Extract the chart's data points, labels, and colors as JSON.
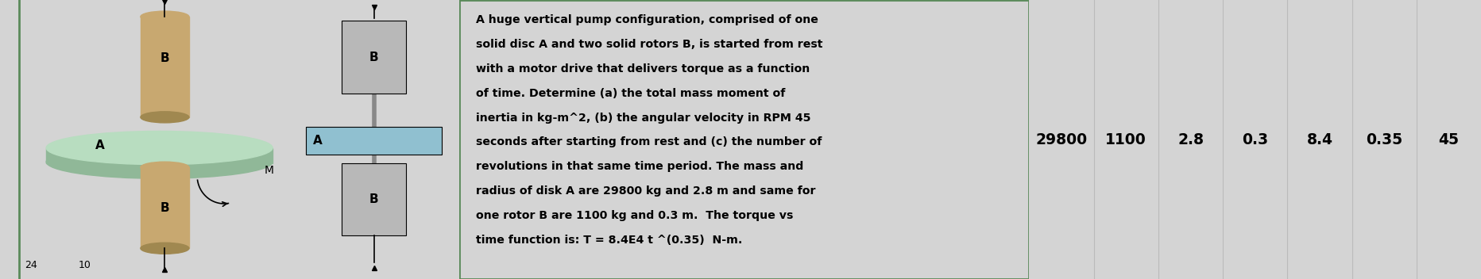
{
  "fig_width": 18.64,
  "fig_height": 3.52,
  "dpi": 100,
  "bg_color": "#d4d4d4",
  "panel_bg": "#e8e8e8",
  "text_panel_bg": "#e8e8e8",
  "data_panel_bg": "#e8e8e8",
  "separator_color": "#5a8a5a",
  "problem_text_lines": [
    "A huge vertical pump configuration, comprised of one",
    "solid disc A and two solid rotors B, is started from rest",
    "with a motor drive that delivers torque as a function",
    "of time. Determine (a) the total mass moment of",
    "inertia in kg-m^2, (b) the angular velocity in RPM 45",
    "seconds after starting from rest and (c) the number of",
    "revolutions in that same time period. The mass and",
    "radius of disk A are 29800 kg and 2.8 m and same for",
    "one rotor B are 1100 kg and 0.3 m.  The torque vs",
    "time function is: T = 8.4E4 t ^(0.35)  N-m."
  ],
  "table_values": [
    "29800",
    "1100",
    "2.8",
    "0.3",
    "8.4",
    "0.35",
    "45"
  ],
  "disk_A_color_top": "#b8ddc0",
  "disk_A_color_side": "#90b898",
  "rotor_B_color": "#c8a870",
  "rotor_B_dark": "#a08850",
  "shaft_2d_color": "#b8b8b8",
  "rotor_rect_color": "#90c0d0",
  "text_font_size": 10.2,
  "table_font_size": 13.5,
  "page_num_left": "24",
  "page_num_right": "10"
}
